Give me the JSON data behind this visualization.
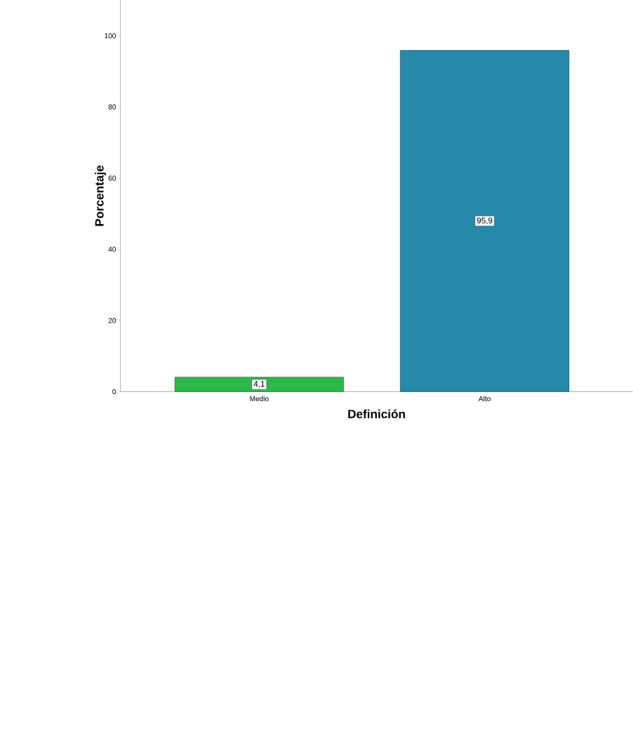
{
  "chart_data": {
    "type": "bar",
    "xlabel": "Definición",
    "ylabel": "Porcentaje",
    "categories": [
      "Medio",
      "Alto"
    ],
    "values": [
      4.1,
      95.9
    ],
    "colors": [
      "#2db84a",
      "#2589aa"
    ],
    "value_labels": [
      "4,1",
      "95,9"
    ],
    "ylim": [
      0,
      110
    ],
    "yticks": [
      0,
      20,
      40,
      60,
      80,
      100
    ]
  }
}
